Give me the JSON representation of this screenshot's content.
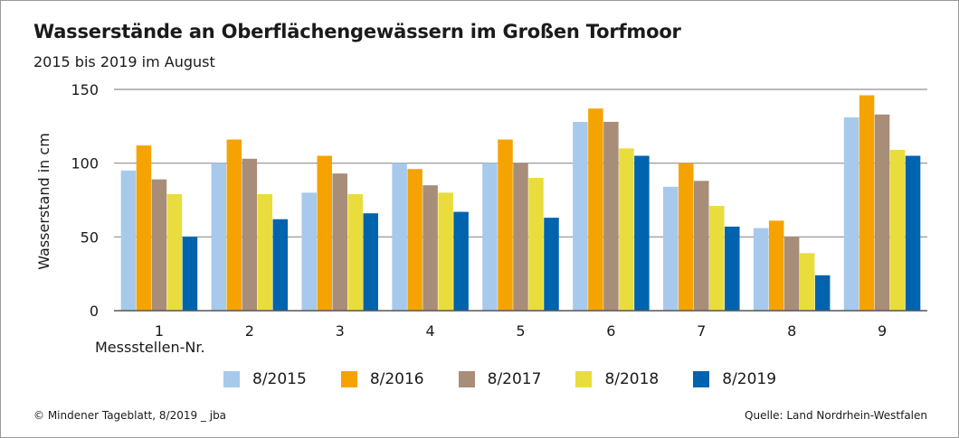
{
  "header": {
    "title": "Wasserstände an Oberflächengewässern im Großen Torfmoor",
    "subtitle": "2015 bis 2019 im August"
  },
  "footer": {
    "credit": "© Mindener Tageblatt, 8/2019 _ jba",
    "source": "Quelle: Land Nordrhein-Westfalen"
  },
  "chart_data": {
    "type": "bar",
    "title": "Wasserstände an Oberflächengewässern im Großen Torfmoor",
    "subtitle": "2015 bis 2019 im August",
    "xlabel": "Messstellen-Nr.",
    "ylabel": "Wasserstand in cm",
    "ylim": [
      0,
      150
    ],
    "yticks": [
      0,
      50,
      100,
      150
    ],
    "grid": true,
    "legend_position": "bottom",
    "categories": [
      "1",
      "2",
      "3",
      "4",
      "5",
      "6",
      "7",
      "8",
      "9"
    ],
    "series": [
      {
        "name": "8/2015",
        "color": "#a7c9ec",
        "values": [
          95,
          100,
          80,
          100,
          100,
          128,
          84,
          56,
          131
        ]
      },
      {
        "name": "8/2016",
        "color": "#f5a300",
        "values": [
          112,
          116,
          105,
          96,
          116,
          137,
          100,
          61,
          146
        ]
      },
      {
        "name": "8/2017",
        "color": "#a88d79",
        "values": [
          89,
          103,
          93,
          85,
          100,
          128,
          88,
          50,
          133
        ]
      },
      {
        "name": "8/2018",
        "color": "#e8dd3c",
        "values": [
          79,
          79,
          79,
          80,
          90,
          110,
          71,
          39,
          109
        ]
      },
      {
        "name": "8/2019",
        "color": "#0063ad",
        "values": [
          50,
          62,
          66,
          67,
          63,
          105,
          57,
          24,
          105
        ]
      }
    ]
  }
}
